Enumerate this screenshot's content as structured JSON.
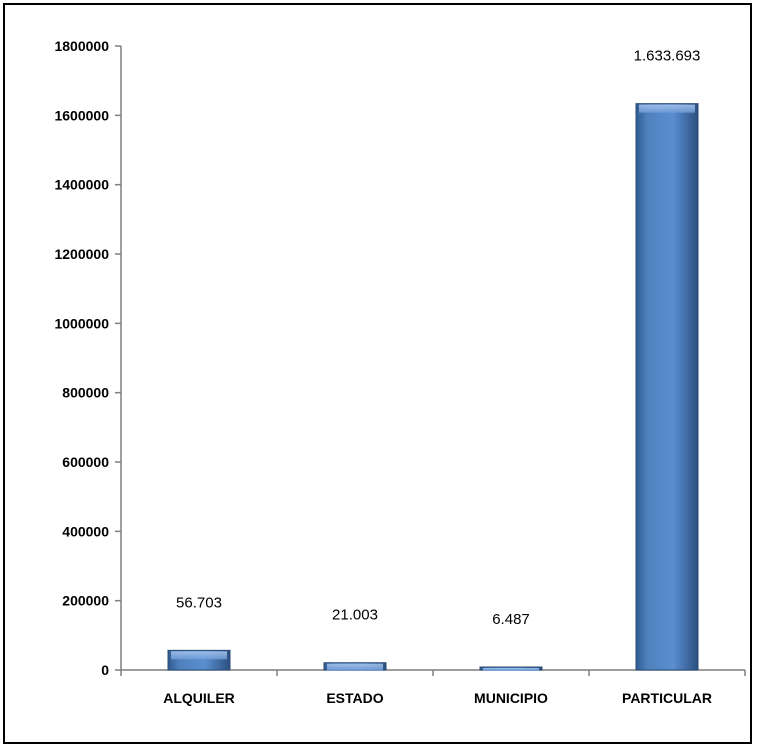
{
  "chart_data": {
    "type": "bar",
    "title": "",
    "xlabel": "",
    "ylabel": "",
    "categories": [
      "ALQUILER",
      "ESTADO",
      "MUNICIPIO",
      "PARTICULAR"
    ],
    "values": [
      56703,
      21003,
      6487,
      1633693
    ],
    "data_labels": [
      "56.703",
      "21.003",
      "6.487",
      "1.633.693"
    ],
    "ylim": [
      0,
      1800000
    ],
    "yticks": [
      "0",
      "200000",
      "400000",
      "600000",
      "800000",
      "1000000",
      "1200000",
      "1400000",
      "1600000",
      "1800000"
    ],
    "grid": false,
    "legend": "none",
    "bar_color": "#4f81bd"
  }
}
